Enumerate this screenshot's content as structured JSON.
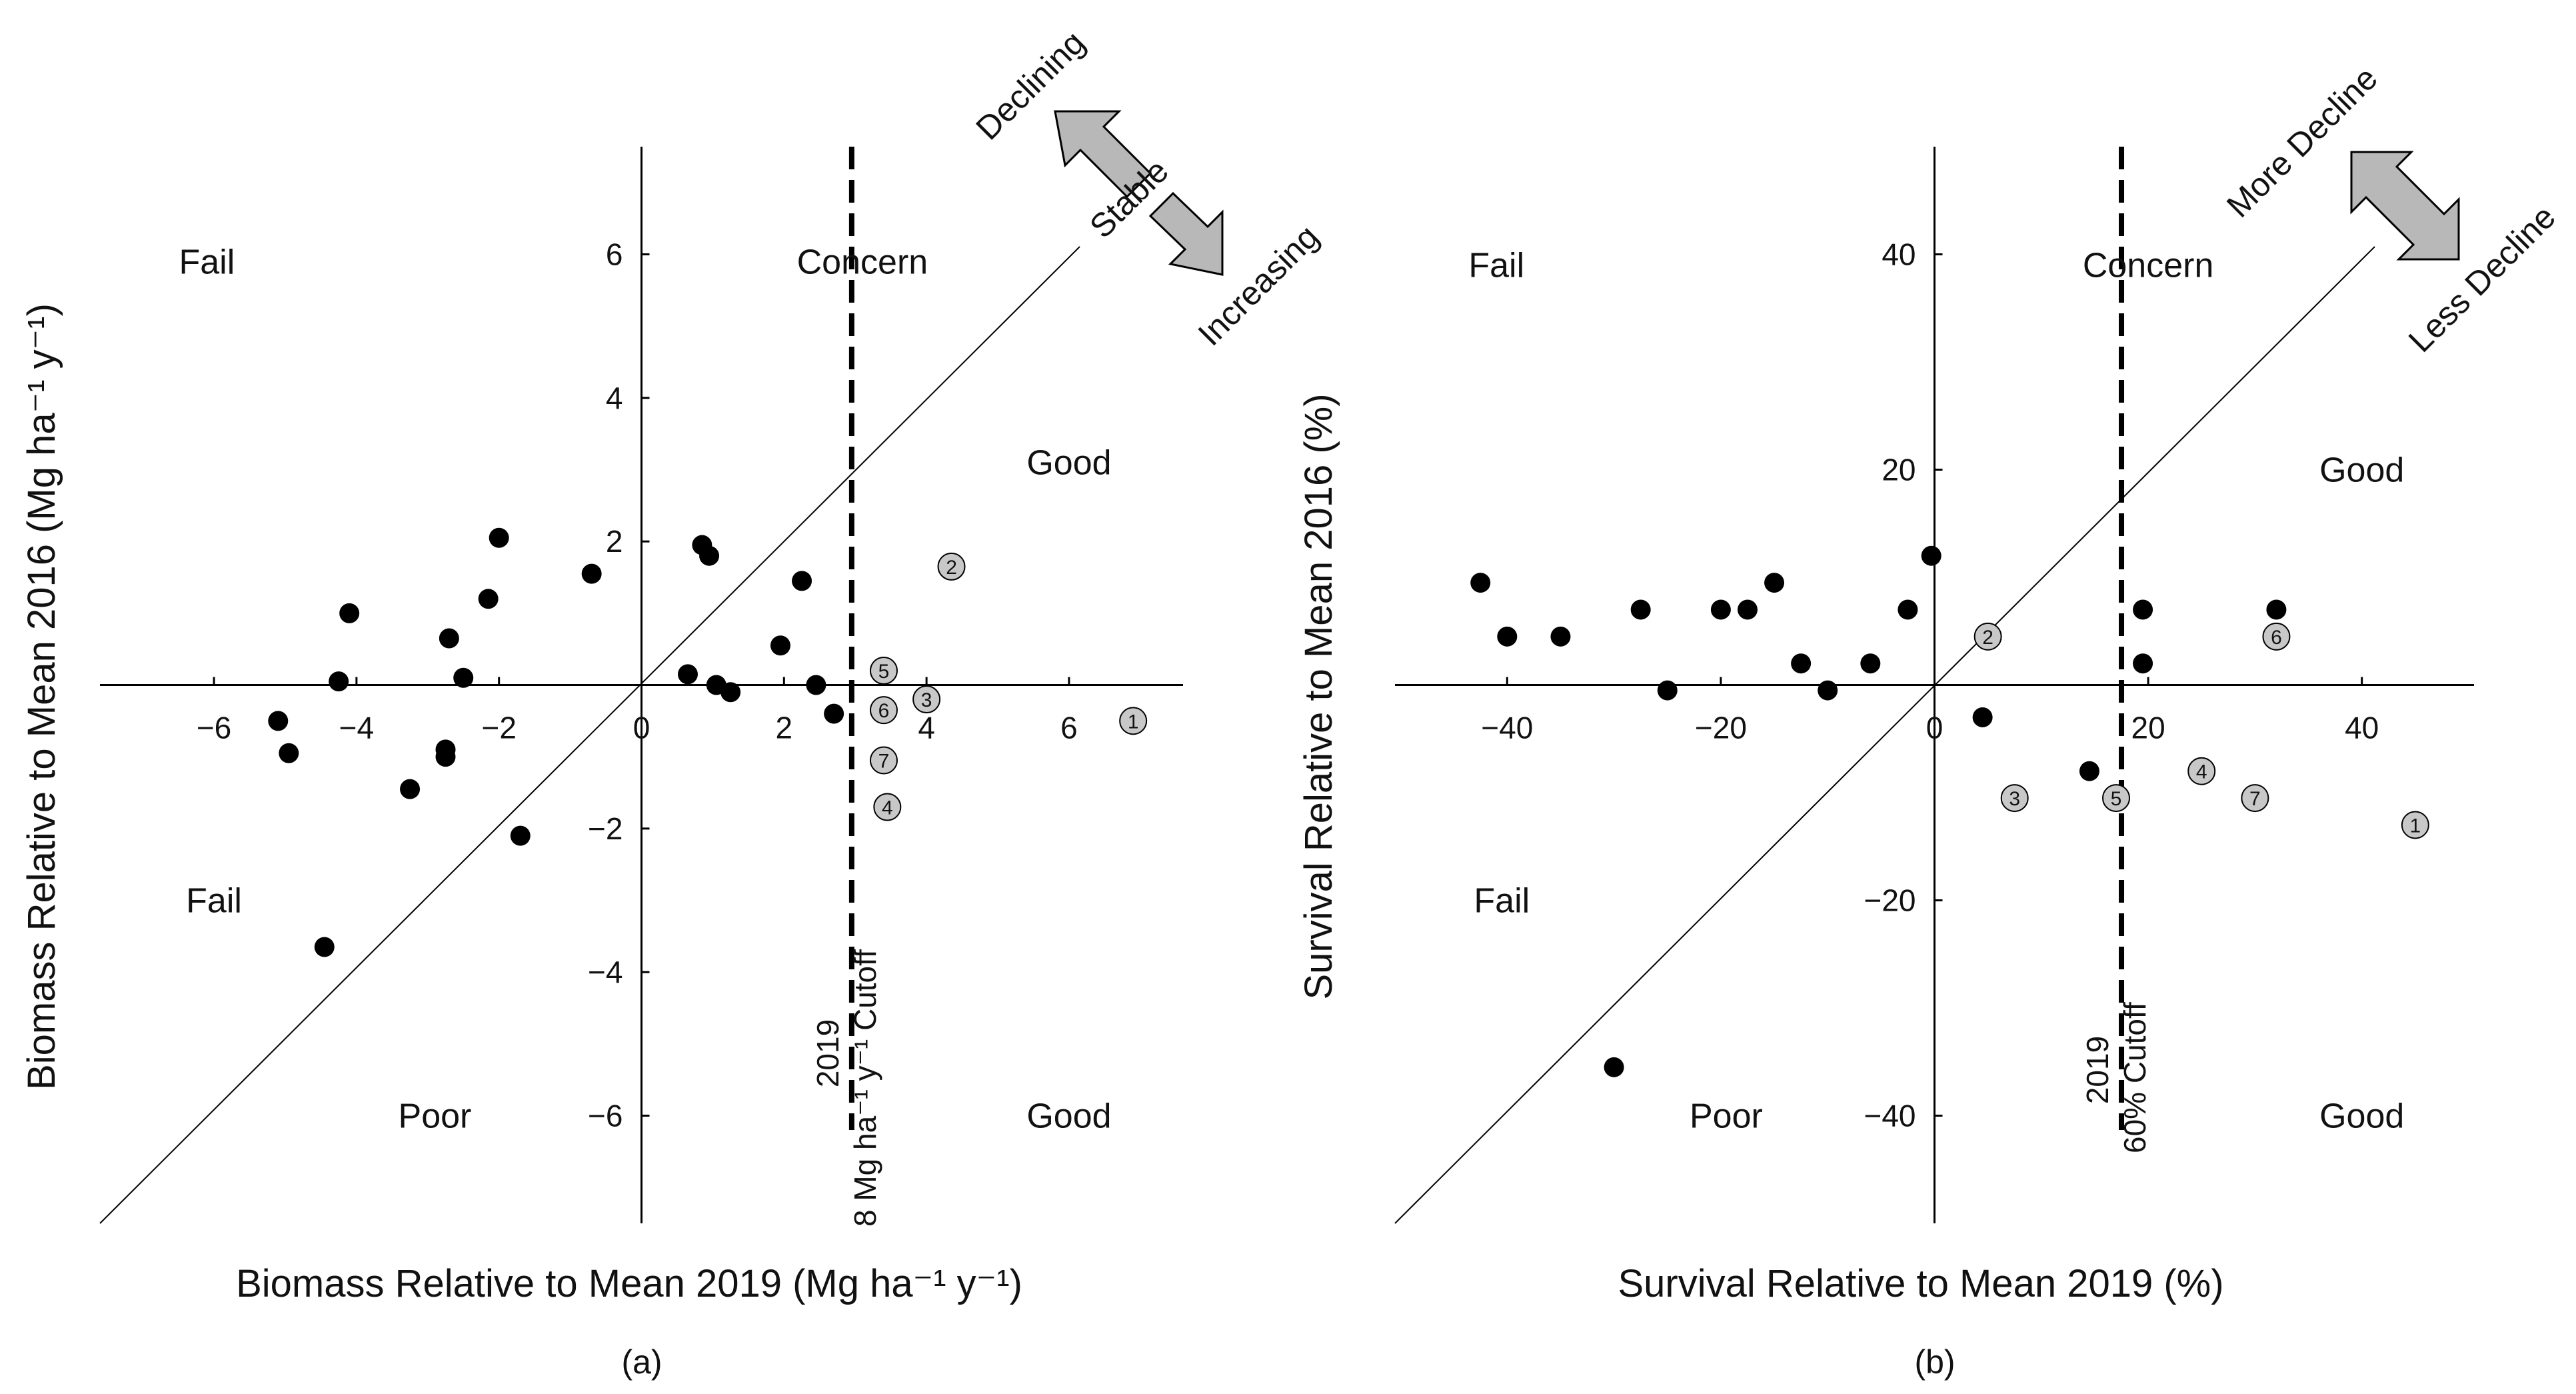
{
  "colors": {
    "point": "#000000",
    "highlight_fill": "#c8c8c8",
    "arrow_fill": "#b8b8b8",
    "line": "#000000"
  },
  "chart_data": [
    {
      "panel": "(a)",
      "type": "scatter",
      "xlabel": "Biomass Relative to Mean 2019 (Mg ha⁻¹ y⁻¹)",
      "ylabel": "Biomass Relative to Mean 2016 (Mg ha⁻¹ y⁻¹)",
      "xlim": [
        -7.6,
        7.6
      ],
      "ylim": [
        -7.5,
        7.5
      ],
      "xticks": [
        -6,
        -4,
        -2,
        0,
        2,
        4,
        6
      ],
      "yticks": [
        -6,
        -4,
        -2,
        2,
        4,
        6
      ],
      "xtick_labels": [
        "−6",
        "−4",
        "−2",
        "0",
        "2",
        "4",
        "6"
      ],
      "ytick_labels": [
        "−6",
        "−4",
        "−2",
        "2",
        "4",
        "6"
      ],
      "cutoff": {
        "x": 2.95,
        "label_line1": "2019",
        "label_line2": "8 Mg ha⁻¹ y⁻¹ Cutoff"
      },
      "regions": [
        {
          "name": "fail-upper",
          "text": "Fail",
          "x": -6.1,
          "y": 5.9
        },
        {
          "name": "concern",
          "text": "Concern",
          "x": 3.1,
          "y": 5.9
        },
        {
          "name": "good-upper",
          "text": "Good",
          "x": 6.0,
          "y": 3.1
        },
        {
          "name": "fail-lower",
          "text": "Fail",
          "x": -6.0,
          "y": -3.0
        },
        {
          "name": "poor",
          "text": "Poor",
          "x": -2.9,
          "y": -6.0
        },
        {
          "name": "good-lower",
          "text": "Good",
          "x": 6.0,
          "y": -6.0
        }
      ],
      "arrow_labels": {
        "upper": "Declining",
        "middle": "Stable",
        "lower": "Increasing"
      },
      "series": [
        {
          "name": "sites",
          "points": [
            {
              "x": -5.1,
              "y": -0.5
            },
            {
              "x": -4.95,
              "y": -0.95
            },
            {
              "x": -4.45,
              "y": -3.65
            },
            {
              "x": -4.25,
              "y": 0.05
            },
            {
              "x": -4.1,
              "y": 1.0
            },
            {
              "x": -3.25,
              "y": -1.45
            },
            {
              "x": -2.75,
              "y": -1.0
            },
            {
              "x": -2.75,
              "y": -0.9
            },
            {
              "x": -2.7,
              "y": 0.65
            },
            {
              "x": -2.5,
              "y": 0.1
            },
            {
              "x": -2.15,
              "y": 1.2
            },
            {
              "x": -2.0,
              "y": 2.05
            },
            {
              "x": -1.7,
              "y": -2.1
            },
            {
              "x": -0.7,
              "y": 1.55
            },
            {
              "x": 0.65,
              "y": 0.15
            },
            {
              "x": 0.85,
              "y": 1.95
            },
            {
              "x": 0.95,
              "y": 1.8
            },
            {
              "x": 1.05,
              "y": -0.0
            },
            {
              "x": 1.25,
              "y": -0.1
            },
            {
              "x": 1.95,
              "y": 0.55
            },
            {
              "x": 2.25,
              "y": 1.45
            },
            {
              "x": 2.45,
              "y": 0.0
            },
            {
              "x": 2.7,
              "y": -0.4
            }
          ]
        },
        {
          "name": "numbered sites",
          "points": [
            {
              "id": "1",
              "x": 6.9,
              "y": -0.5
            },
            {
              "id": "2",
              "x": 4.35,
              "y": 1.65
            },
            {
              "id": "3",
              "x": 4.0,
              "y": -0.2
            },
            {
              "id": "4",
              "x": 3.45,
              "y": -1.7
            },
            {
              "id": "5",
              "x": 3.4,
              "y": 0.2
            },
            {
              "id": "6",
              "x": 3.4,
              "y": -0.35
            },
            {
              "id": "7",
              "x": 3.4,
              "y": -1.05
            }
          ]
        }
      ]
    },
    {
      "panel": "(b)",
      "type": "scatter",
      "xlabel": "Survival Relative to Mean 2019 (%)",
      "ylabel": "Survival Relative to Mean 2016 (%)",
      "xlim": [
        -50.5,
        50.5
      ],
      "ylim": [
        -50,
        50
      ],
      "xticks": [
        -40,
        -20,
        0,
        20,
        40
      ],
      "yticks": [
        -40,
        -20,
        20,
        40
      ],
      "xtick_labels": [
        "−40",
        "−20",
        "0",
        "20",
        "40"
      ],
      "ytick_labels": [
        "−40",
        "−20",
        "20",
        "40"
      ],
      "cutoff": {
        "x": 17.5,
        "label_line1": "2019",
        "label_line2": "60% Cutoff"
      },
      "regions": [
        {
          "name": "fail-upper",
          "text": "Fail",
          "x": -41.0,
          "y": 39.0
        },
        {
          "name": "concern",
          "text": "Concern",
          "x": 20.0,
          "y": 39.0
        },
        {
          "name": "good-upper",
          "text": "Good",
          "x": 40.0,
          "y": 20.0
        },
        {
          "name": "fail-lower",
          "text": "Fail",
          "x": -40.5,
          "y": -20.0
        },
        {
          "name": "poor",
          "text": "Poor",
          "x": -19.5,
          "y": -40.0
        },
        {
          "name": "good-lower",
          "text": "Good",
          "x": 40.0,
          "y": -40.0
        }
      ],
      "arrow_labels": {
        "upper": "More Decline",
        "lower": "Less Decline"
      },
      "series": [
        {
          "name": "sites",
          "points": [
            {
              "x": -42.5,
              "y": 9.5
            },
            {
              "x": -40.0,
              "y": 4.5
            },
            {
              "x": -35.0,
              "y": 4.5
            },
            {
              "x": -27.5,
              "y": 7.0
            },
            {
              "x": -25.0,
              "y": -0.5
            },
            {
              "x": -20.0,
              "y": 7.0
            },
            {
              "x": -17.5,
              "y": 7.0
            },
            {
              "x": -15.0,
              "y": 9.5
            },
            {
              "x": -12.5,
              "y": 2.0
            },
            {
              "x": -10.0,
              "y": -0.5
            },
            {
              "x": -6.0,
              "y": 2.0
            },
            {
              "x": -2.5,
              "y": 7.0
            },
            {
              "x": -0.3,
              "y": 12.0
            },
            {
              "x": 4.5,
              "y": -3.0
            },
            {
              "x": 14.5,
              "y": -8.0
            },
            {
              "x": 19.5,
              "y": 2.0
            },
            {
              "x": 19.5,
              "y": 7.0
            },
            {
              "x": 32.0,
              "y": 7.0
            },
            {
              "x": -30.0,
              "y": -35.5
            }
          ]
        },
        {
          "name": "numbered sites",
          "points": [
            {
              "id": "1",
              "x": 45.0,
              "y": -13.0
            },
            {
              "id": "2",
              "x": 5.0,
              "y": 4.5
            },
            {
              "id": "3",
              "x": 7.5,
              "y": -10.5
            },
            {
              "id": "4",
              "x": 25.0,
              "y": -8.0
            },
            {
              "id": "5",
              "x": 17.0,
              "y": -10.5
            },
            {
              "id": "6",
              "x": 32.0,
              "y": 4.5
            },
            {
              "id": "7",
              "x": 30.0,
              "y": -10.5
            }
          ]
        }
      ]
    }
  ]
}
